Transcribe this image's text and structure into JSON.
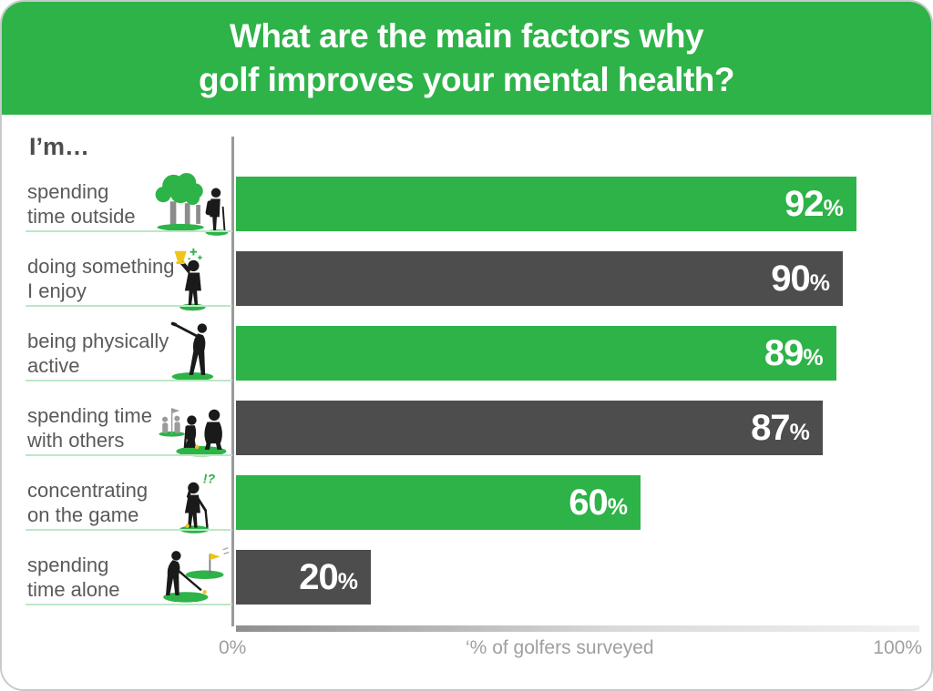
{
  "colors": {
    "header_green": "#2db348",
    "bar_green": "#2db348",
    "bar_dark": "#4d4d4d",
    "separator_green": "#bce8c5",
    "axis_line_gray": "#9a9a9a",
    "label_gray": "#5a5a5a",
    "axis_label_gray": "#9f9f9f",
    "trophy_yellow": "#f0c419"
  },
  "header": {
    "title_line1": "What are the main factors why",
    "title_line2": "golf improves your mental health?"
  },
  "chart": {
    "intro_label": "I’m…",
    "axis": {
      "min_label": "0%",
      "axis_title": "‘% of golfers surveyed",
      "max_label": "100%"
    }
  },
  "chart_data": {
    "type": "bar",
    "orientation": "horizontal",
    "title": "What are the main factors why golf improves your mental health?",
    "xlabel": "‘% of golfers surveyed",
    "xlim": [
      0,
      100
    ],
    "unit": "%",
    "grid": false,
    "legend": null,
    "categories": [
      "spending time outside",
      "doing something I enjoy",
      "being physically active",
      "spending time with others",
      "concentrating on the game",
      "spending time alone"
    ],
    "label_lines": [
      [
        "spending",
        "time outside"
      ],
      [
        "doing something",
        "I enjoy"
      ],
      [
        "being physically",
        "active"
      ],
      [
        "spending time",
        "with others"
      ],
      [
        "concentrating",
        "on the game"
      ],
      [
        "spending",
        "time alone"
      ]
    ],
    "values": [
      92,
      90,
      89,
      87,
      60,
      20
    ],
    "bar_colors": [
      "#2db348",
      "#4d4d4d",
      "#2db348",
      "#4d4d4d",
      "#2db348",
      "#4d4d4d"
    ],
    "icons": [
      "trees-golfer-icon",
      "golfer-trophy-icon",
      "golfer-swing-icon",
      "golfers-group-icon",
      "golfer-thinking-icon",
      "golfer-putting-icon"
    ]
  }
}
